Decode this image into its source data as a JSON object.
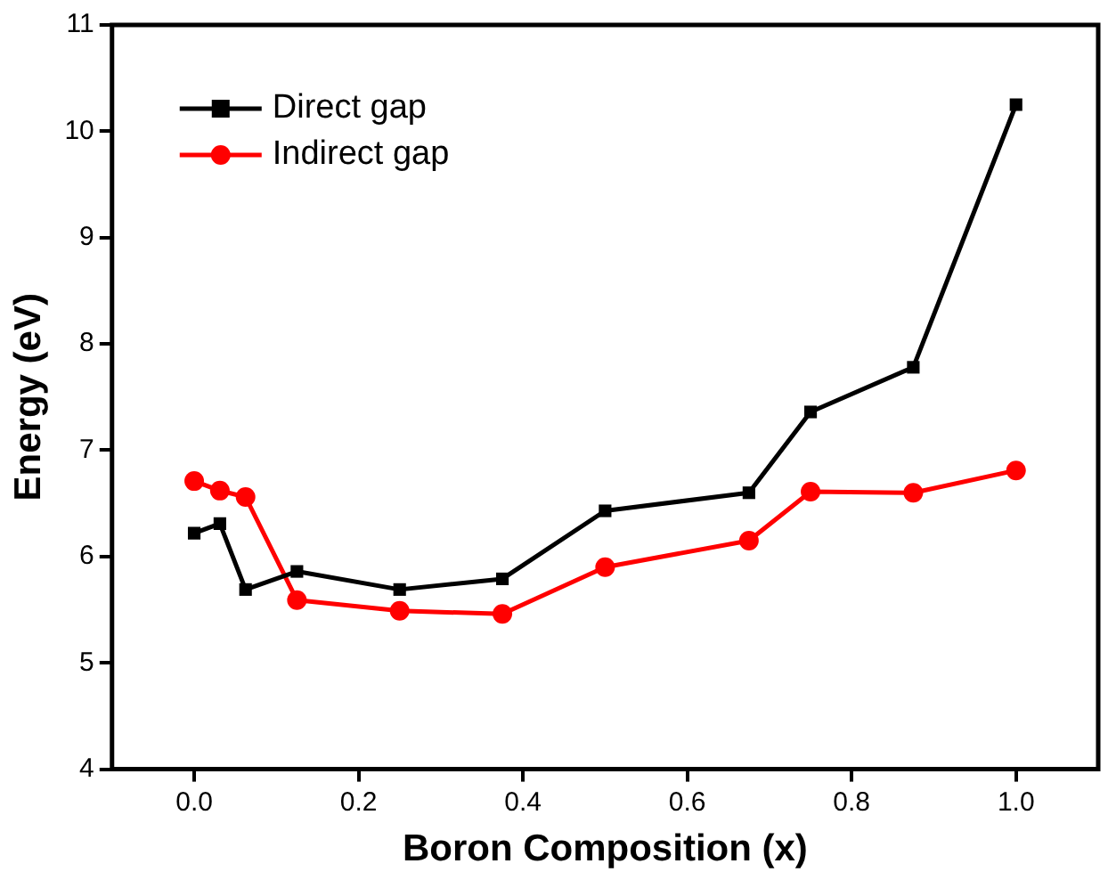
{
  "chart_data": {
    "type": "line",
    "xlabel": "Boron Composition (x)",
    "ylabel": "Energy (eV)",
    "xlim": [
      -0.1,
      1.1
    ],
    "xticks": [
      {
        "value": 0,
        "label": "0.0"
      },
      0.2,
      0.4,
      0.6,
      0.8,
      {
        "value": 1,
        "label": "1.0"
      }
    ],
    "ylim": [
      4,
      11
    ],
    "yticks": [
      4,
      5,
      6,
      7,
      8,
      9,
      10,
      11
    ],
    "grid": false,
    "legend": "top left",
    "series": [
      {
        "name": "Direct gap",
        "color": "#000000",
        "marker": "square",
        "x": [
          0,
          0.03125,
          0.0625,
          0.125,
          0.25,
          0.375,
          0.5,
          0.675,
          0.75,
          0.875,
          1.0
        ],
        "values": [
          6.22,
          6.31,
          5.69,
          5.86,
          5.69,
          5.79,
          6.43,
          6.6,
          7.36,
          7.78,
          10.25
        ]
      },
      {
        "name": "Indirect gap",
        "color": "#ff0000",
        "marker": "circle",
        "x": [
          0,
          0.03125,
          0.0625,
          0.125,
          0.25,
          0.375,
          0.5,
          0.675,
          0.75,
          0.875,
          1.0
        ],
        "values": [
          6.71,
          6.62,
          6.56,
          5.59,
          5.49,
          5.46,
          5.9,
          6.15,
          6.61,
          6.6,
          6.81
        ]
      }
    ]
  }
}
